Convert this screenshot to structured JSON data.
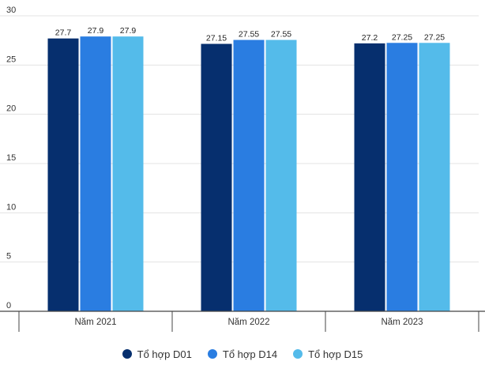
{
  "chart_data": {
    "type": "bar",
    "title": "",
    "xlabel": "",
    "ylabel": "",
    "ylim": [
      0,
      30
    ],
    "yticks": [
      0,
      5,
      10,
      15,
      20,
      25,
      30
    ],
    "categories": [
      "Năm 2021",
      "Năm 2022",
      "Năm 2023"
    ],
    "series": [
      {
        "name": "Tổ hợp D01",
        "color": "#062f6e",
        "values": [
          27.7,
          27.15,
          27.2
        ],
        "labels": [
          "27.7",
          "27.15",
          "27.2"
        ]
      },
      {
        "name": "Tổ hợp D14",
        "color": "#2a7de1",
        "values": [
          27.9,
          27.55,
          27.25
        ],
        "labels": [
          "27.9",
          "27.55",
          "27.25"
        ]
      },
      {
        "name": "Tổ hợp D15",
        "color": "#54bbea",
        "values": [
          27.9,
          27.55,
          27.25
        ],
        "labels": [
          "27.9",
          "27.55",
          "27.25"
        ]
      }
    ],
    "grid": true,
    "legend_position": "bottom"
  }
}
